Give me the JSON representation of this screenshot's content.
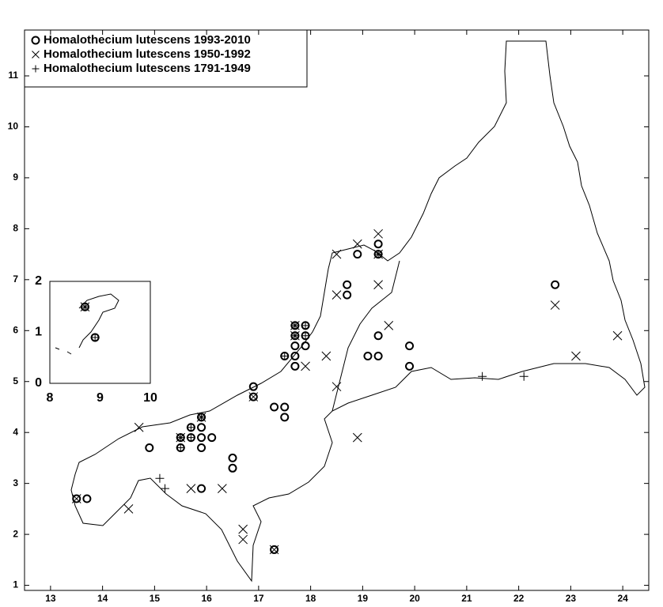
{
  "chart_data": [
    {
      "type": "scatter",
      "xlim": [
        12.5,
        24.5
      ],
      "ylim": [
        0.9,
        11.9
      ],
      "xticks": [
        13,
        14,
        15,
        16,
        17,
        18,
        19,
        20,
        21,
        22,
        23,
        24
      ],
      "yticks": [
        1,
        2,
        3,
        4,
        5,
        6,
        7,
        8,
        9,
        10,
        11
      ],
      "legend": "upper left",
      "series": [
        {
          "name": "Homalothecium lutescens 1993-2010",
          "marker": "circle",
          "color": "#000000",
          "x": [
            13.5,
            13.7,
            14.9,
            15.5,
            15.5,
            15.7,
            15.7,
            15.9,
            15.9,
            15.9,
            15.9,
            16.1,
            15.9,
            16.5,
            16.5,
            16.9,
            16.9,
            17.3,
            17.5,
            17.5,
            17.3,
            17.5,
            17.7,
            17.7,
            17.7,
            17.7,
            17.7,
            17.9,
            17.9,
            17.9,
            18.7,
            18.7,
            18.9,
            19.3,
            19.3,
            19.3,
            19.1,
            19.3,
            19.9,
            19.9,
            22.7
          ],
          "values": [
            2.7,
            2.7,
            3.7,
            3.9,
            3.7,
            3.9,
            4.1,
            4.3,
            4.1,
            3.9,
            3.7,
            3.9,
            2.9,
            3.5,
            3.3,
            4.9,
            4.7,
            4.5,
            4.5,
            4.3,
            1.7,
            5.5,
            5.3,
            5.5,
            5.7,
            5.9,
            6.1,
            5.7,
            5.9,
            6.1,
            6.9,
            6.7,
            7.5,
            7.7,
            7.5,
            5.9,
            5.5,
            5.5,
            5.7,
            5.3,
            6.9
          ]
        },
        {
          "name": "Homalothecium lutescens 1950-1992",
          "marker": "x",
          "color": "#000000",
          "x": [
            13.5,
            14.5,
            14.7,
            15.5,
            15.7,
            15.9,
            16.3,
            16.7,
            16.7,
            16.9,
            17.3,
            17.7,
            17.7,
            17.9,
            18.3,
            18.5,
            18.5,
            18.5,
            18.9,
            18.9,
            19.3,
            19.3,
            19.3,
            19.5,
            22.7,
            23.1,
            23.9
          ],
          "values": [
            2.7,
            2.5,
            4.1,
            3.9,
            2.9,
            4.3,
            2.9,
            2.1,
            1.9,
            4.7,
            1.7,
            6.1,
            5.9,
            5.3,
            5.5,
            7.5,
            6.7,
            4.9,
            7.7,
            3.9,
            7.9,
            7.5,
            6.9,
            6.1,
            6.5,
            5.5,
            5.9
          ]
        },
        {
          "name": "Homalothecium lutescens 1791-1949",
          "marker": "plus",
          "color": "#000000",
          "x": [
            15.1,
            15.2,
            15.5,
            15.5,
            15.7,
            15.7,
            15.9,
            17.5,
            17.7,
            17.7,
            17.9,
            17.9,
            21.3,
            22.1,
            19.3
          ],
          "values": [
            3.1,
            2.9,
            3.9,
            3.7,
            4.1,
            3.9,
            4.3,
            5.5,
            5.9,
            6.1,
            6.1,
            5.9,
            5.1,
            5.1,
            7.5
          ]
        }
      ]
    },
    {
      "type": "scatter",
      "xlim": [
        8,
        10
      ],
      "ylim": [
        0,
        2
      ],
      "xticks": [
        8,
        9,
        10
      ],
      "yticks": [
        0,
        1,
        2
      ],
      "series": [
        {
          "marker": "circle",
          "color": "#000000",
          "x": [
            8.7,
            8.9
          ],
          "values": [
            1.5,
            0.9
          ]
        },
        {
          "marker": "x",
          "color": "#000000",
          "x": [
            8.7
          ],
          "values": [
            1.5
          ]
        },
        {
          "marker": "plus",
          "color": "#000000",
          "x": [
            8.7,
            8.9
          ],
          "values": [
            1.5,
            0.9
          ]
        }
      ]
    }
  ]
}
